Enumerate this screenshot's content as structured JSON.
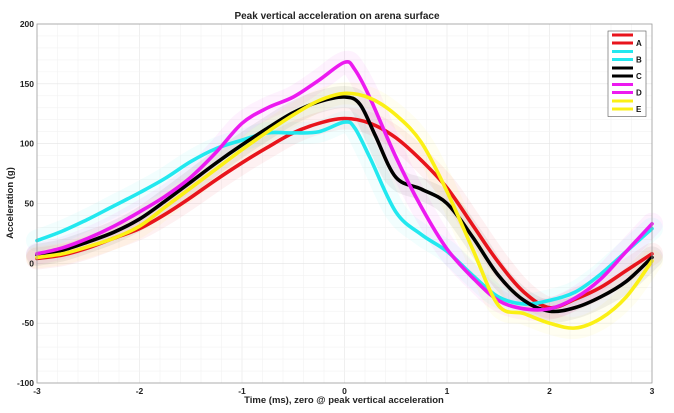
{
  "chart_data": {
    "type": "line",
    "title": "Peak vertical acceleration on arena surface",
    "xlabel": "Time (ms), zero @ peak vertical acceleration",
    "ylabel": "Acceleration (g)",
    "xlim": [
      -3,
      3
    ],
    "ylim": [
      -100,
      200
    ],
    "xticks": [
      -3,
      -2,
      -1,
      0,
      1,
      2,
      3
    ],
    "yticks": [
      -100,
      -50,
      0,
      50,
      100,
      150,
      200
    ],
    "grid": true,
    "legend_position": "top-right",
    "series": [
      {
        "name": "A",
        "color": "#e8141c",
        "points": [
          [
            -3,
            4
          ],
          [
            -2.75,
            7
          ],
          [
            -2.5,
            13
          ],
          [
            -2.25,
            21
          ],
          [
            -2,
            29
          ],
          [
            -1.75,
            41
          ],
          [
            -1.5,
            55
          ],
          [
            -1.25,
            70
          ],
          [
            -1,
            84
          ],
          [
            -0.75,
            97
          ],
          [
            -0.5,
            109
          ],
          [
            -0.25,
            117
          ],
          [
            0,
            121
          ],
          [
            0.25,
            117
          ],
          [
            0.5,
            105
          ],
          [
            0.75,
            86
          ],
          [
            1,
            63
          ],
          [
            1.25,
            32
          ],
          [
            1.5,
            1
          ],
          [
            1.75,
            -24
          ],
          [
            2,
            -37
          ],
          [
            2.25,
            -30
          ],
          [
            2.5,
            -20
          ],
          [
            2.75,
            -6
          ],
          [
            3,
            8
          ]
        ]
      },
      {
        "name": "B",
        "color": "#22e8ef",
        "points": [
          [
            -3,
            19
          ],
          [
            -2.75,
            27
          ],
          [
            -2.5,
            37
          ],
          [
            -2.25,
            48
          ],
          [
            -2,
            59
          ],
          [
            -1.75,
            71
          ],
          [
            -1.5,
            85
          ],
          [
            -1.25,
            96
          ],
          [
            -1,
            103
          ],
          [
            -0.75,
            109
          ],
          [
            -0.5,
            109
          ],
          [
            -0.25,
            110
          ],
          [
            0,
            118
          ],
          [
            0.1,
            113
          ],
          [
            0.25,
            88
          ],
          [
            0.5,
            43
          ],
          [
            0.75,
            24
          ],
          [
            1,
            10
          ],
          [
            1.25,
            -10
          ],
          [
            1.5,
            -28
          ],
          [
            1.75,
            -34
          ],
          [
            2,
            -31
          ],
          [
            2.25,
            -24
          ],
          [
            2.5,
            -9
          ],
          [
            2.75,
            10
          ],
          [
            3,
            29
          ]
        ]
      },
      {
        "name": "C",
        "color": "#000000",
        "points": [
          [
            -3,
            7
          ],
          [
            -2.75,
            11
          ],
          [
            -2.5,
            18
          ],
          [
            -2.25,
            26
          ],
          [
            -2,
            37
          ],
          [
            -1.75,
            52
          ],
          [
            -1.5,
            68
          ],
          [
            -1.25,
            84
          ],
          [
            -1,
            99
          ],
          [
            -0.75,
            113
          ],
          [
            -0.5,
            126
          ],
          [
            -0.25,
            135
          ],
          [
            0,
            139
          ],
          [
            0.15,
            133
          ],
          [
            0.3,
            107
          ],
          [
            0.5,
            72
          ],
          [
            0.75,
            62
          ],
          [
            1,
            50
          ],
          [
            1.25,
            22
          ],
          [
            1.5,
            -10
          ],
          [
            1.75,
            -31
          ],
          [
            2,
            -40
          ],
          [
            2.25,
            -37
          ],
          [
            2.5,
            -28
          ],
          [
            2.75,
            -15
          ],
          [
            3,
            5
          ]
        ]
      },
      {
        "name": "D",
        "color": "#ec1af0",
        "points": [
          [
            -3,
            8
          ],
          [
            -2.75,
            13
          ],
          [
            -2.5,
            21
          ],
          [
            -2.25,
            31
          ],
          [
            -2,
            43
          ],
          [
            -1.75,
            56
          ],
          [
            -1.5,
            72
          ],
          [
            -1.25,
            93
          ],
          [
            -1,
            117
          ],
          [
            -0.75,
            130
          ],
          [
            -0.5,
            139
          ],
          [
            -0.25,
            153
          ],
          [
            0,
            168
          ],
          [
            0.1,
            162
          ],
          [
            0.25,
            138
          ],
          [
            0.5,
            89
          ],
          [
            0.75,
            47
          ],
          [
            1,
            12
          ],
          [
            1.25,
            -12
          ],
          [
            1.5,
            -31
          ],
          [
            1.75,
            -38
          ],
          [
            2,
            -38
          ],
          [
            2.25,
            -29
          ],
          [
            2.5,
            -13
          ],
          [
            2.75,
            10
          ],
          [
            3,
            33
          ]
        ]
      },
      {
        "name": "E",
        "color": "#fbf015",
        "points": [
          [
            -3,
            5
          ],
          [
            -2.75,
            8
          ],
          [
            -2.5,
            14
          ],
          [
            -2.25,
            21
          ],
          [
            -2,
            31
          ],
          [
            -1.75,
            47
          ],
          [
            -1.5,
            63
          ],
          [
            -1.25,
            79
          ],
          [
            -1,
            95
          ],
          [
            -0.75,
            110
          ],
          [
            -0.5,
            124
          ],
          [
            -0.25,
            136
          ],
          [
            0,
            142
          ],
          [
            0.25,
            138
          ],
          [
            0.5,
            124
          ],
          [
            0.75,
            101
          ],
          [
            1,
            60
          ],
          [
            1.25,
            12
          ],
          [
            1.5,
            -35
          ],
          [
            1.75,
            -42
          ],
          [
            2,
            -50
          ],
          [
            2.25,
            -54
          ],
          [
            2.5,
            -46
          ],
          [
            2.75,
            -28
          ],
          [
            3,
            2
          ]
        ]
      }
    ]
  }
}
